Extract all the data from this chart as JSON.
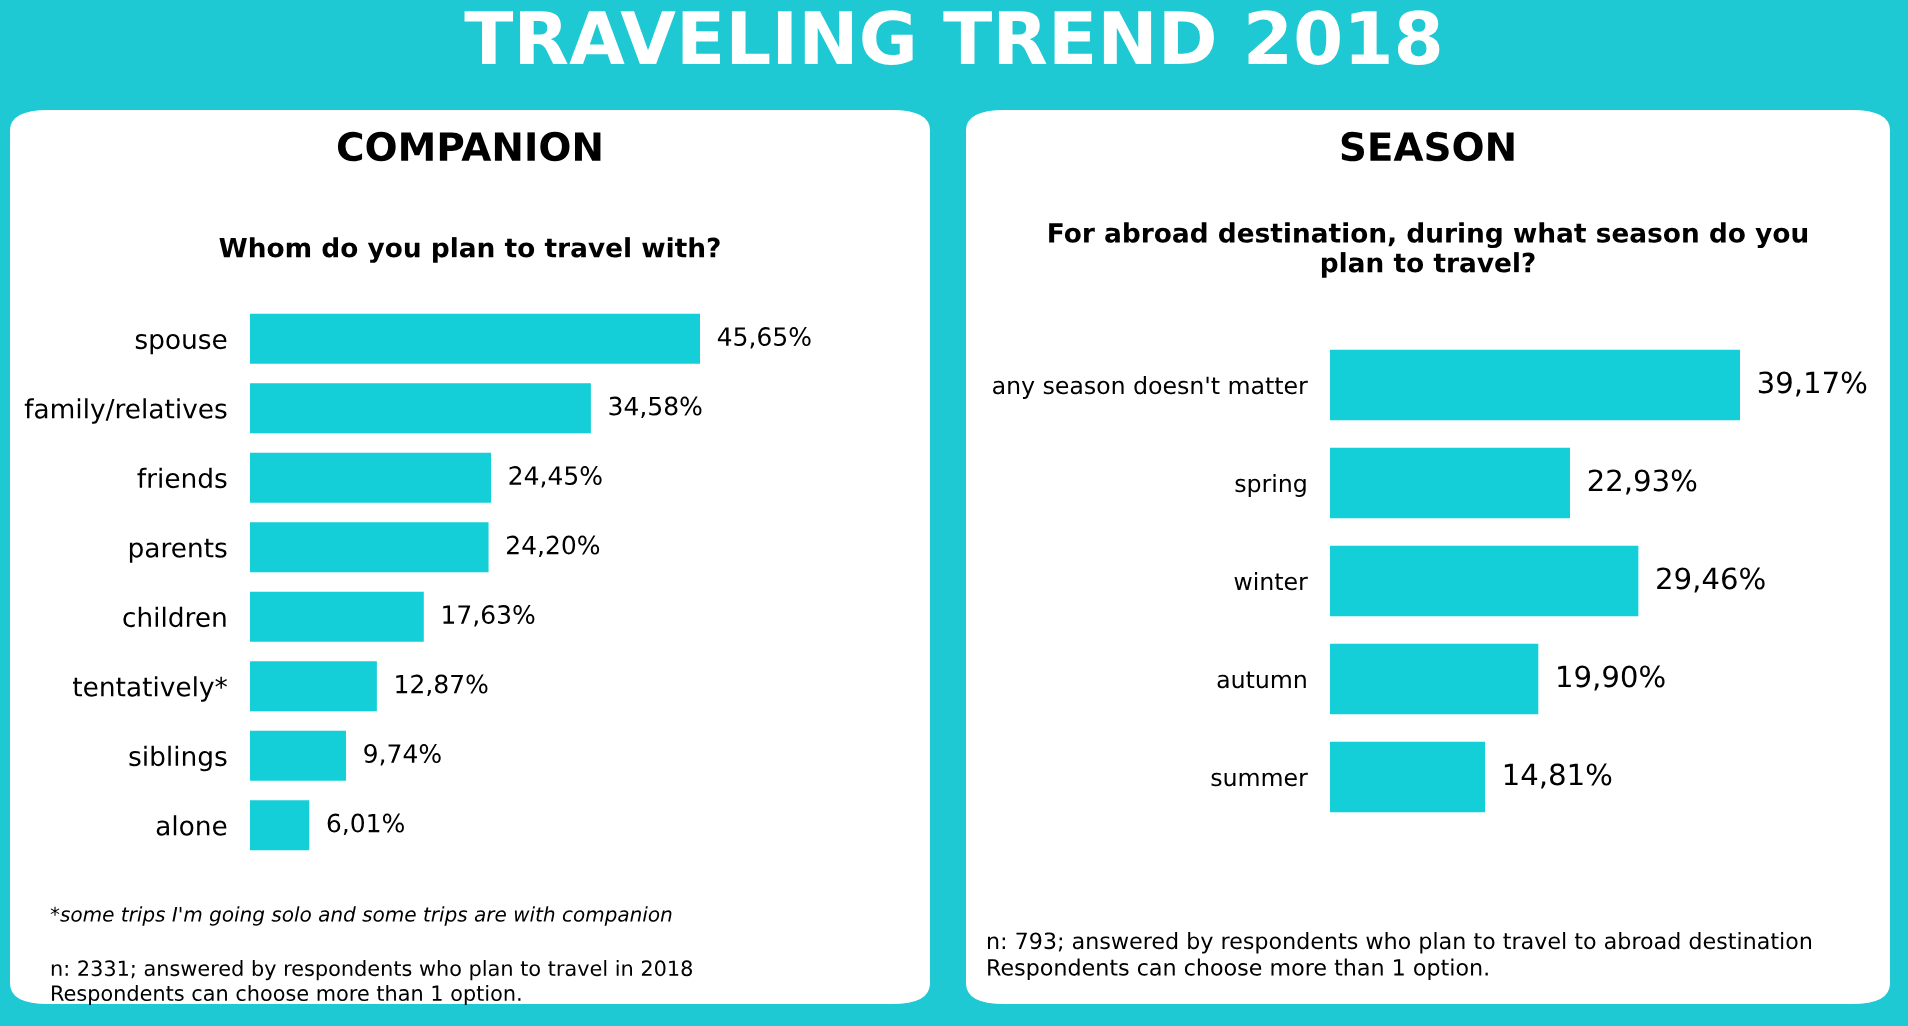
{
  "chart_data": [
    {
      "type": "bar",
      "orientation": "horizontal",
      "title": "COMPANION",
      "subtitle": "Whom do you plan to travel with?",
      "categories": [
        "spouse",
        "family/relatives",
        "friends",
        "parents",
        "children",
        "tentatively*",
        "siblings",
        "alone"
      ],
      "values": [
        45.65,
        34.58,
        24.45,
        24.2,
        17.63,
        12.87,
        9.74,
        6.01
      ],
      "value_labels": [
        "45,65%",
        "34,58%",
        "24,45%",
        "24,20%",
        "17,63%",
        "12,87%",
        "9,74%",
        "6,01%"
      ],
      "color": "#14ced8",
      "tick_labels": "y",
      "grid": false,
      "legend": false,
      "annotations": [
        "TRAVELING TREND 2018",
        "*some trips I'm going solo and some trips are with companion",
        "n: 2331; answered by respondents who plan to travel in 2018\nRespondents can choose more than 1 option."
      ]
    },
    {
      "type": "bar",
      "orientation": "horizontal",
      "title": "SEASON",
      "subtitle": "For abroad destination, during what season do you\nplan to travel?",
      "categories": [
        "any season doesn't matter",
        "spring",
        "winter",
        "autumn",
        "summer"
      ],
      "values": [
        39.17,
        22.93,
        29.46,
        19.9,
        14.81
      ],
      "value_labels": [
        "39,17%",
        "22,93%",
        "29,46%",
        "19,90%",
        "14,81%"
      ],
      "color": "#14ced8",
      "tick_labels": "y",
      "grid": false,
      "legend": false,
      "annotations": [
        "n: 793; answered by respondents who plan to travel to abroad destination\nRespondents can choose more than 1 option."
      ]
    }
  ]
}
